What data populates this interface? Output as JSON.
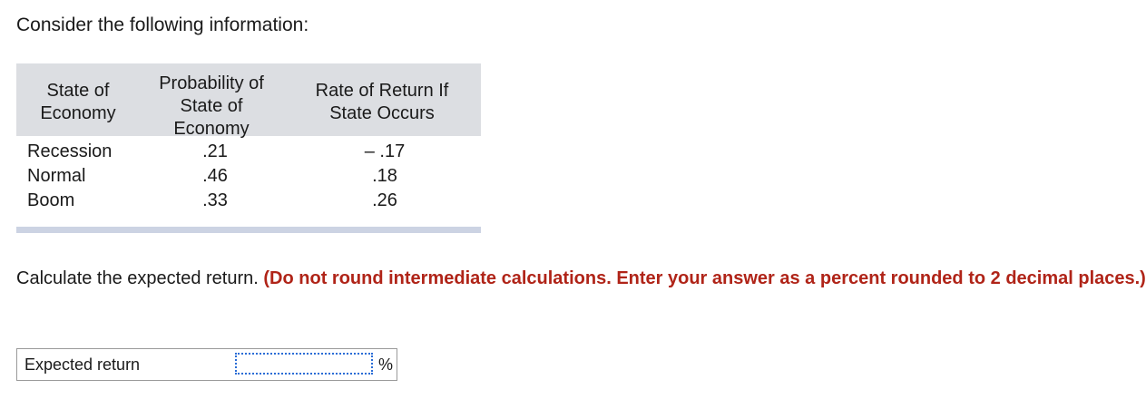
{
  "intro": "Consider the following information:",
  "table": {
    "headers": {
      "col1": [
        "State of",
        "Economy"
      ],
      "col2": [
        "Probability of",
        "State of",
        "Economy"
      ],
      "col3": [
        "Rate of Return If",
        "State Occurs"
      ]
    },
    "rows": [
      {
        "state": "Recession",
        "probability": ".21",
        "rate": "– .17"
      },
      {
        "state": "Normal",
        "probability": ".46",
        "rate": ".18"
      },
      {
        "state": "Boom",
        "probability": ".33",
        "rate": ".26"
      }
    ]
  },
  "question": {
    "plain": "Calculate the expected return.",
    "emphasis": "(Do not round intermediate calculations. Enter your answer as a percent rounded to 2 decimal places.)"
  },
  "answer": {
    "label": "Expected return",
    "value": "",
    "unit": "%"
  }
}
